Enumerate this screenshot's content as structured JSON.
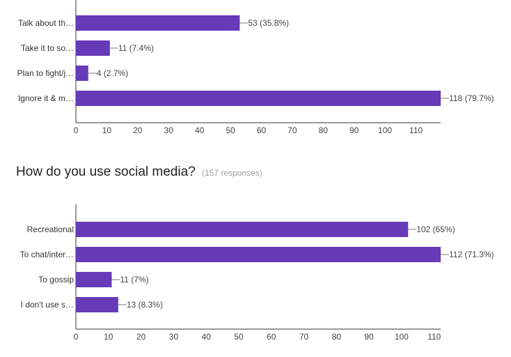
{
  "chart_data": [
    {
      "type": "bar",
      "orientation": "horizontal",
      "categories": [
        "Talk about th…",
        "Take it to so…",
        "Plan to fight/j…",
        "Ignore it & m…"
      ],
      "values": [
        53,
        11,
        4,
        118
      ],
      "value_labels": [
        "53 (35.8%)",
        "11 (7.4%)",
        "4 (2.7%)",
        "118 (79.7%)"
      ],
      "xticks": [
        "0",
        "10",
        "20",
        "30",
        "40",
        "50",
        "60",
        "70",
        "80",
        "90",
        "100",
        "110"
      ],
      "xlim": [
        0,
        118
      ],
      "grid": false,
      "bar_color": "#673ab7"
    },
    {
      "type": "bar",
      "orientation": "horizontal",
      "title": "How do you use social media?",
      "subtitle": "(157 responses)",
      "categories": [
        "Recreational",
        "To chat/inter…",
        "To gossip",
        "I don't use s…"
      ],
      "values": [
        102,
        112,
        11,
        13
      ],
      "value_labels": [
        "102 (65%)",
        "112 (71.3%)",
        "11 (7%)",
        "13 (8.3%)"
      ],
      "xticks": [
        "0",
        "10",
        "20",
        "30",
        "40",
        "50",
        "60",
        "70",
        "80",
        "90",
        "100",
        "110"
      ],
      "xlim": [
        0,
        112
      ],
      "grid": false,
      "bar_color": "#673ab7"
    }
  ]
}
